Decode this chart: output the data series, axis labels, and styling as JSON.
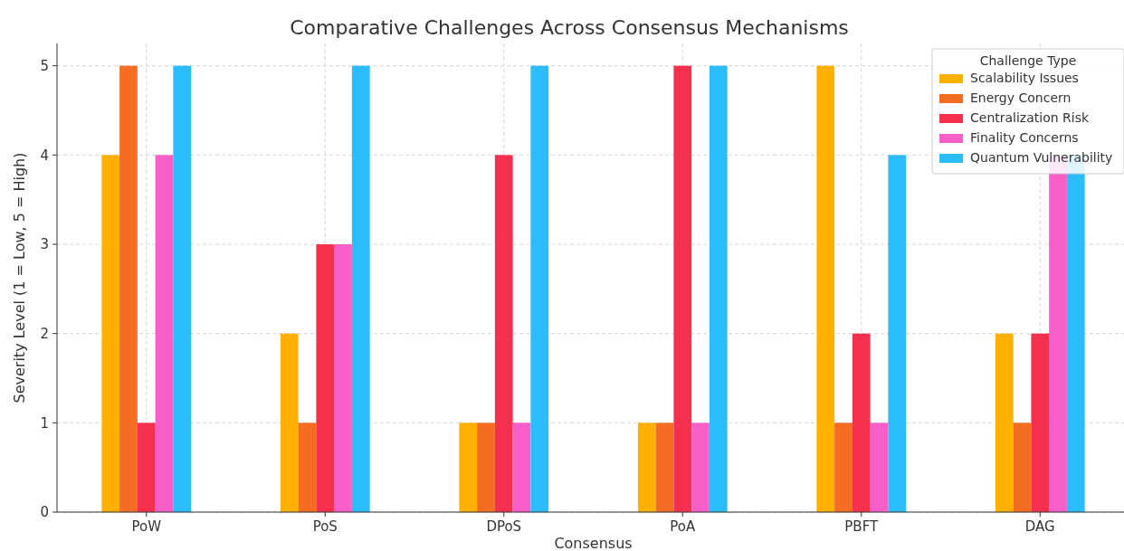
{
  "chart_data": {
    "type": "bar",
    "title": "Comparative Challenges Across Consensus Mechanisms",
    "xlabel": "Consensus",
    "ylabel": "Severity Level (1 = Low, 5 = High)",
    "legend_title": "Challenge Type",
    "categories": [
      "PoW",
      "PoS",
      "DPoS",
      "PoA",
      "PBFT",
      "DAG"
    ],
    "series": [
      {
        "name": "Scalability Issues",
        "color": "#ffb000",
        "values": [
          4,
          2,
          1,
          1,
          5,
          2
        ]
      },
      {
        "name": "Energy Concern",
        "color": "#f46d22",
        "values": [
          5,
          1,
          1,
          1,
          1,
          1
        ]
      },
      {
        "name": "Centralization Risk",
        "color": "#f5304f",
        "values": [
          1,
          3,
          4,
          5,
          2,
          2
        ]
      },
      {
        "name": "Finality Concerns",
        "color": "#f75fc8",
        "values": [
          4,
          3,
          1,
          1,
          1,
          4
        ]
      },
      {
        "name": "Quantum Vulnerability",
        "color": "#2bbcfb",
        "values": [
          5,
          5,
          5,
          5,
          4,
          4
        ]
      }
    ],
    "ylim": [
      0,
      5.25
    ],
    "yticks": [
      0,
      1,
      2,
      3,
      4,
      5
    ],
    "grid": true,
    "legend": "top right"
  }
}
